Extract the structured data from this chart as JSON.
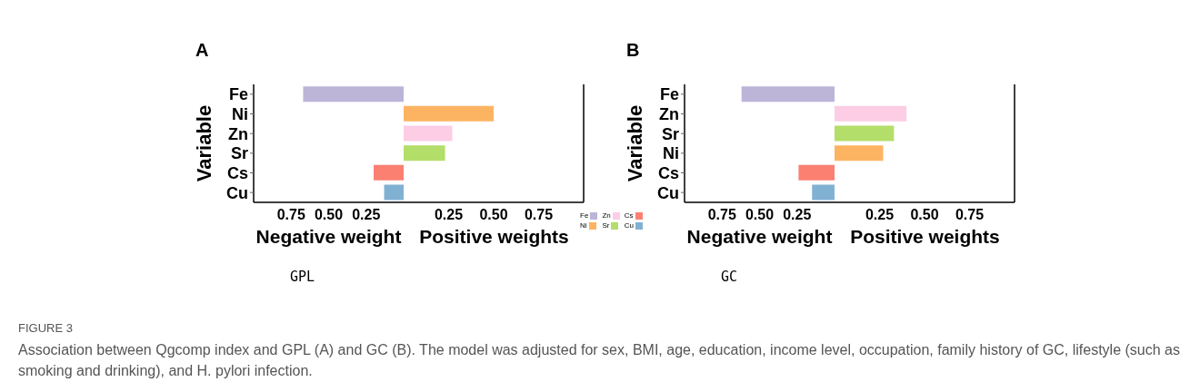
{
  "chart_data": [
    {
      "type": "bar",
      "orientation": "horizontal",
      "stacked": true,
      "title": "A",
      "ylabel": "Variable",
      "xlabel": "Negative weight",
      "categories": [
        "Fe",
        "Ni",
        "Zn",
        "Sr",
        "Cs",
        "Cu"
      ],
      "series": [
        {
          "color": "#bcb5d8",
          "values": [
            0.67,
            null,
            null,
            null,
            null,
            null
          ]
        },
        {
          "color": "#fb8072",
          "values": [
            null,
            null,
            null,
            null,
            0.2,
            null
          ]
        },
        {
          "color": "#80b1d3",
          "values": [
            null,
            null,
            null,
            null,
            null,
            0.13
          ]
        }
      ],
      "xlim": [
        1,
        0
      ],
      "xticks": [
        {
          "value": 0.75,
          "label": "0.75"
        },
        {
          "value": 0.5,
          "label": "0.50"
        },
        {
          "value": 0.25,
          "label": "0.25"
        }
      ],
      "grid": false,
      "annotations": [
        "GPL",
        "FIGURE 3",
        "Association between Qgcomp index and GPL (A) and GC (B). The model was adjusted for sex, BMI, age, education, income level, occupation, family history of GC, lifestyle (such as smoking and drinking), and H. pylori infection."
      ]
    },
    {
      "type": "bar",
      "orientation": "horizontal",
      "stacked": true,
      "xlabel": "Positive weights",
      "series": [
        {
          "name": "Fe",
          "color": "#bcb5d8",
          "values": [
            null,
            null,
            null,
            null,
            null,
            null
          ]
        },
        {
          "name": "Ni",
          "color": "#fdb462",
          "values": [
            null,
            0.5,
            null,
            null,
            null,
            null
          ]
        },
        {
          "name": "Zn",
          "color": "#fccde5",
          "values": [
            null,
            null,
            0.27,
            null,
            null,
            null
          ]
        },
        {
          "name": "Sr",
          "color": "#b3de69",
          "values": [
            null,
            null,
            null,
            0.23,
            null,
            null
          ]
        },
        {
          "name": "Cs",
          "color": "#fb8072",
          "values": [
            null,
            null,
            null,
            null,
            null,
            null
          ]
        },
        {
          "name": "Cu",
          "color": "#80b1d3",
          "values": [
            null,
            null,
            null,
            null,
            null,
            null
          ]
        }
      ],
      "xlim": [
        0,
        1
      ],
      "xticks": [
        {
          "value": 0.25,
          "label": "0.25"
        },
        {
          "value": 0.5,
          "label": "0.50"
        },
        {
          "value": 0.75,
          "label": "0.75"
        }
      ],
      "grid": false,
      "tick_labels": "x",
      "legend": "bottom right"
    },
    {
      "type": "bar",
      "orientation": "horizontal",
      "stacked": true,
      "title": "B",
      "ylabel": "Variable",
      "xlabel": "Negative weight",
      "categories": [
        "Fe",
        "Zn",
        "Sr",
        "Ni",
        "Cs",
        "Cu"
      ],
      "series": [
        {
          "color": "#bcb5d8",
          "values": [
            0.62,
            null,
            null,
            null,
            null,
            null
          ]
        },
        {
          "color": "#fb8072",
          "values": [
            null,
            null,
            null,
            null,
            0.24,
            null
          ]
        },
        {
          "color": "#80b1d3",
          "values": [
            null,
            null,
            null,
            null,
            null,
            0.15
          ]
        }
      ],
      "xlim": [
        1,
        0
      ],
      "xticks": [
        {
          "value": 0.75,
          "label": "0.75"
        },
        {
          "value": 0.5,
          "label": "0.50"
        },
        {
          "value": 0.25,
          "label": "0.25"
        }
      ],
      "grid": false,
      "annotations": [
        "GC"
      ]
    },
    {
      "type": "bar",
      "orientation": "horizontal",
      "stacked": true,
      "xlabel": "Positive weights",
      "series": [
        {
          "color": "#fccde5",
          "values": [
            null,
            0.4,
            null,
            null,
            null,
            null
          ]
        },
        {
          "color": "#b3de69",
          "values": [
            null,
            null,
            0.33,
            null,
            null,
            null
          ]
        },
        {
          "color": "#fdb462",
          "values": [
            null,
            null,
            null,
            0.27,
            null,
            null
          ]
        }
      ],
      "xlim": [
        0,
        1
      ],
      "xticks": [
        {
          "value": 0.25,
          "label": "0.25"
        },
        {
          "value": 0.5,
          "label": "0.50"
        },
        {
          "value": 0.75,
          "label": "0.75"
        }
      ],
      "grid": false,
      "tick_labels": "x"
    }
  ]
}
